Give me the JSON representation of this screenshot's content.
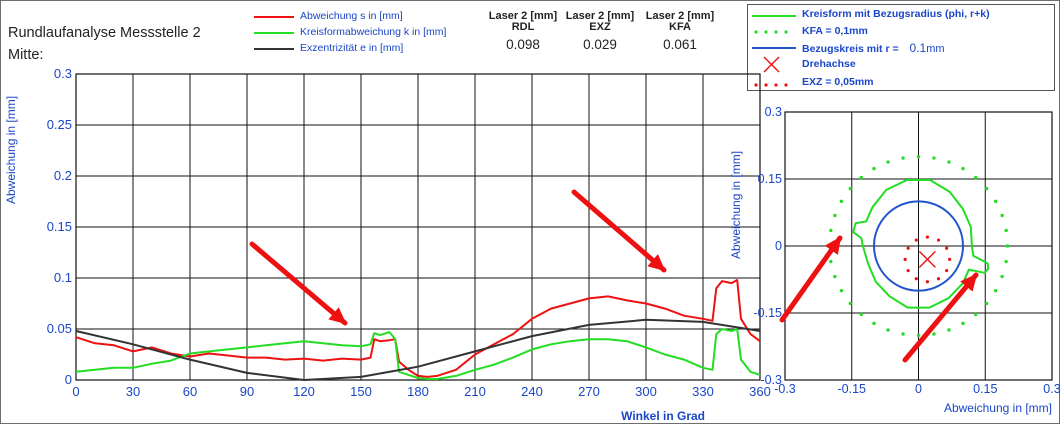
{
  "title": "Rundlaufanalyse Messstelle 2",
  "subtitle": "Mitte:",
  "colors": {
    "red": "#ee1111",
    "green": "#22dd22",
    "black": "#333333",
    "blue": "#2255cc",
    "axis": "#1a46c8",
    "arrow": "#ee1111"
  },
  "stats": [
    {
      "sensor": "Laser 2 [mm]",
      "name": "RDL",
      "value": "0.098"
    },
    {
      "sensor": "Laser 2 [mm]",
      "name": "EXZ",
      "value": "0.029"
    },
    {
      "sensor": "Laser 2 [mm]",
      "name": "KFA",
      "value": "0.061"
    }
  ],
  "legend_right": {
    "kreisform": "Kreisform mit Bezugsradius (phi, r+k)",
    "kfa": "KFA = 0,1mm",
    "bezug_prefix": "Bezugskreis mit r =",
    "bezug_value": "0.1",
    "bezug_unit": "mm",
    "drehachse": "Drehachse",
    "exz": "EXZ = 0,05mm"
  },
  "chart_data": [
    {
      "type": "line",
      "xlabel": "Winkel in Grad",
      "ylabel": "Abweichung in [mm]",
      "xlim": [
        0,
        360
      ],
      "ylim": [
        0,
        0.3
      ],
      "xticks": [
        "0",
        "30",
        "60",
        "90",
        "120",
        "150",
        "180",
        "210",
        "240",
        "270",
        "300",
        "330",
        "360"
      ],
      "yticks": [
        "0",
        "0.05",
        "0.1",
        "0.15",
        "0.2",
        "0.25",
        "0.3"
      ],
      "grid": true,
      "legend": "top-center",
      "series": [
        {
          "name": "Abweichung s in [mm]",
          "color": "#ee1111",
          "x": [
            0,
            10,
            20,
            30,
            40,
            50,
            60,
            70,
            80,
            90,
            100,
            110,
            120,
            130,
            140,
            150,
            155,
            157,
            160,
            165,
            168,
            170,
            175,
            180,
            185,
            190,
            200,
            210,
            220,
            230,
            240,
            250,
            260,
            270,
            280,
            290,
            300,
            310,
            320,
            330,
            335,
            337,
            340,
            345,
            348,
            350,
            355,
            360
          ],
          "y": [
            0.042,
            0.036,
            0.034,
            0.028,
            0.032,
            0.026,
            0.023,
            0.026,
            0.024,
            0.022,
            0.022,
            0.02,
            0.021,
            0.019,
            0.021,
            0.02,
            0.022,
            0.04,
            0.038,
            0.039,
            0.04,
            0.018,
            0.01,
            0.004,
            0.003,
            0.004,
            0.01,
            0.025,
            0.035,
            0.045,
            0.06,
            0.07,
            0.075,
            0.08,
            0.082,
            0.078,
            0.075,
            0.07,
            0.063,
            0.06,
            0.058,
            0.09,
            0.097,
            0.095,
            0.098,
            0.06,
            0.045,
            0.038
          ]
        },
        {
          "name": "Kreisformabweichung k in [mm]",
          "color": "#22dd22",
          "x": [
            0,
            10,
            20,
            30,
            40,
            50,
            60,
            70,
            80,
            90,
            100,
            110,
            120,
            130,
            140,
            150,
            155,
            157,
            160,
            165,
            168,
            170,
            175,
            180,
            185,
            190,
            200,
            210,
            220,
            230,
            240,
            250,
            260,
            270,
            280,
            290,
            300,
            310,
            320,
            330,
            335,
            337,
            340,
            345,
            348,
            350,
            355,
            360
          ],
          "y": [
            0.008,
            0.01,
            0.012,
            0.012,
            0.016,
            0.019,
            0.026,
            0.028,
            0.03,
            0.032,
            0.034,
            0.036,
            0.038,
            0.036,
            0.034,
            0.033,
            0.035,
            0.046,
            0.044,
            0.047,
            0.04,
            0.008,
            0.005,
            0.002,
            0.001,
            0.001,
            0.004,
            0.01,
            0.015,
            0.022,
            0.03,
            0.035,
            0.038,
            0.04,
            0.04,
            0.038,
            0.032,
            0.025,
            0.02,
            0.012,
            0.01,
            0.045,
            0.05,
            0.048,
            0.05,
            0.02,
            0.008,
            0.005
          ]
        },
        {
          "name": "Exzentrizität e in [mm]",
          "color": "#333333",
          "x": [
            0,
            30,
            60,
            90,
            120,
            150,
            180,
            210,
            240,
            270,
            300,
            330,
            360
          ],
          "y": [
            0.048,
            0.035,
            0.02,
            0.007,
            0.0,
            0.003,
            0.013,
            0.028,
            0.043,
            0.054,
            0.059,
            0.057,
            0.048
          ]
        }
      ]
    },
    {
      "type": "polar-xy",
      "xlabel": "Abweichung in [mm]",
      "ylabel": "Abweichung in [mm]",
      "xlim": [
        -0.3,
        0.3
      ],
      "ylim": [
        -0.3,
        0.3
      ],
      "xticks": [
        "-0.3",
        "-0.15",
        "0",
        "0.15",
        "0.3"
      ],
      "yticks": [
        "0.3",
        "0.15",
        "0",
        "-0.15",
        "-0.3"
      ],
      "grid": true,
      "center": [
        0.02,
        -0.03
      ],
      "reference_radius": 0.1,
      "kfa_radius": 0.2,
      "exz_radius": 0.05
    }
  ]
}
